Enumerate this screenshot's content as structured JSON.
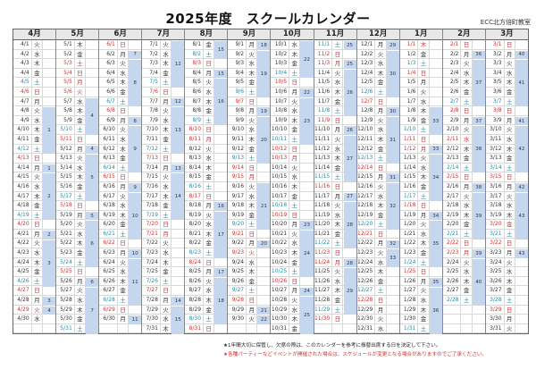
{
  "header": {
    "title": "2025年度　スクールカレンダー",
    "organization": "ECC北方倍町教室"
  },
  "colors": {
    "saturday": "#2a8aa8",
    "holiday": "#d03030",
    "week_shade": "#c5d7ee"
  },
  "weekday_chars": [
    "日",
    "月",
    "火",
    "水",
    "木",
    "金",
    "土"
  ],
  "months": [
    {
      "label": "4月",
      "m": 4,
      "days": 30,
      "first_wd": 2,
      "holidays": [
        29
      ],
      "weeks": [
        [
          8,
          5,
          "1",
          1
        ],
        [
          14,
          1,
          "1",
          1
        ],
        [
          15,
          5,
          "2",
          1
        ],
        [
          21,
          1,
          "2",
          1
        ],
        [
          22,
          5,
          "3",
          1
        ],
        [
          28,
          1,
          "3",
          1
        ],
        [
          29,
          1,
          "4",
          1
        ]
      ]
    },
    {
      "label": "5月",
      "m": 5,
      "days": 31,
      "first_wd": 4,
      "holidays": [
        3,
        4,
        5,
        6
      ],
      "weeks": [
        [
          7,
          4,
          "4",
          1
        ],
        [
          12,
          1,
          "4",
          1
        ],
        [
          13,
          5,
          "5",
          1
        ],
        [
          19,
          1,
          "5",
          1
        ],
        [
          20,
          5,
          "6",
          1
        ],
        [
          26,
          1,
          "6",
          1
        ],
        [
          27,
          5,
          "7",
          1
        ]
      ]
    },
    {
      "label": "6月",
      "m": 6,
      "days": 30,
      "first_wd": 0,
      "holidays": [],
      "weeks": [
        [
          2,
          1,
          "7",
          1
        ],
        [
          3,
          5,
          "8",
          1
        ],
        [
          9,
          1,
          "8",
          1
        ],
        [
          10,
          5,
          "9",
          1
        ],
        [
          16,
          1,
          "9",
          1
        ],
        [
          17,
          5,
          "10",
          1
        ],
        [
          23,
          1,
          "10",
          1
        ],
        [
          24,
          5,
          "11",
          1
        ],
        [
          30,
          1,
          "11",
          1
        ]
      ]
    },
    {
      "label": "7月",
      "m": 7,
      "days": 31,
      "first_wd": 2,
      "holidays": [
        21
      ],
      "weeks": [
        [
          1,
          5,
          "12",
          1
        ],
        [
          7,
          1,
          "12",
          1
        ],
        [
          8,
          5,
          "13",
          1
        ],
        [
          14,
          1,
          "13",
          1
        ],
        [
          15,
          5,
          "14",
          1
        ],
        [
          28,
          1,
          "14",
          1
        ],
        [
          29,
          3,
          "15",
          1
        ]
      ]
    },
    {
      "label": "8月",
      "m": 8,
      "days": 31,
      "first_wd": 5,
      "holidays": [
        11
      ],
      "weeks": [
        [
          1,
          2,
          "15",
          1
        ],
        [
          4,
          1,
          "15",
          1
        ],
        [
          5,
          5,
          "16",
          1
        ],
        [
          18,
          1,
          "16",
          1
        ],
        [
          19,
          5,
          "17",
          1
        ],
        [
          25,
          1,
          "17",
          1
        ],
        [
          26,
          5,
          "18",
          1
        ]
      ]
    },
    {
      "label": "9月",
      "m": 9,
      "days": 30,
      "first_wd": 1,
      "holidays": [
        15,
        23
      ],
      "weeks": [
        [
          1,
          1,
          "18",
          1
        ],
        [
          2,
          5,
          "19",
          1
        ],
        [
          8,
          1,
          "19",
          1
        ],
        [
          9,
          5,
          "20",
          1
        ],
        [
          16,
          5,
          "21",
          1
        ],
        [
          22,
          1,
          "20",
          1
        ],
        [
          29,
          1,
          "21",
          1
        ],
        [
          30,
          1,
          "22",
          1
        ]
      ]
    },
    {
      "label": "10月",
      "m": 10,
      "days": 31,
      "first_wd": 3,
      "holidays": [
        13
      ],
      "weeks": [
        [
          1,
          4,
          "22",
          1
        ],
        [
          6,
          1,
          "22",
          1
        ],
        [
          7,
          5,
          "23",
          1
        ],
        [
          20,
          1,
          "23",
          1
        ],
        [
          21,
          5,
          "24",
          1
        ],
        [
          27,
          1,
          "24",
          1
        ],
        [
          28,
          4,
          "25",
          1
        ]
      ]
    },
    {
      "label": "11月",
      "m": 11,
      "days": 30,
      "first_wd": 6,
      "holidays": [
        3,
        23,
        24
      ],
      "weeks": [
        [
          1,
          1,
          "25",
          1
        ],
        [
          3,
          1,
          "25",
          1
        ],
        [
          4,
          5,
          "26",
          1
        ],
        [
          10,
          1,
          "26",
          1
        ],
        [
          11,
          5,
          "27",
          1
        ],
        [
          17,
          1,
          "27",
          1
        ],
        [
          18,
          5,
          "28",
          1
        ],
        [
          24,
          1,
          "28",
          1
        ],
        [
          25,
          5,
          "29",
          1
        ]
      ]
    },
    {
      "label": "12月",
      "m": 12,
      "days": 31,
      "first_wd": 1,
      "holidays": [],
      "weeks": [
        [
          1,
          1,
          "29",
          1
        ],
        [
          2,
          5,
          "30",
          1
        ],
        [
          8,
          1,
          "30",
          1
        ],
        [
          9,
          5,
          "31",
          1
        ],
        [
          15,
          1,
          "31",
          1
        ],
        [
          16,
          5,
          "32",
          1
        ],
        [
          22,
          1,
          "32",
          1
        ],
        [
          23,
          2,
          "33",
          1
        ]
      ]
    },
    {
      "label": "1月",
      "m": 1,
      "days": 31,
      "first_wd": 4,
      "holidays": [
        1,
        12
      ],
      "weeks": [
        [
          8,
          3,
          "33",
          1
        ],
        [
          12,
          1,
          "33",
          1
        ],
        [
          13,
          5,
          "34",
          1
        ],
        [
          19,
          1,
          "34",
          1
        ],
        [
          20,
          5,
          "35",
          1
        ],
        [
          26,
          1,
          "35",
          1
        ],
        [
          27,
          5,
          "36",
          1
        ]
      ]
    },
    {
      "label": "2月",
      "m": 2,
      "days": 28,
      "first_wd": 0,
      "holidays": [
        11,
        23
      ],
      "weeks": [
        [
          2,
          1,
          "36",
          1
        ],
        [
          3,
          5,
          "37",
          1
        ],
        [
          9,
          1,
          "37",
          1
        ],
        [
          10,
          5,
          "38",
          1
        ],
        [
          16,
          1,
          "38",
          1
        ],
        [
          17,
          5,
          "39",
          1
        ],
        [
          23,
          1,
          "39",
          1
        ],
        [
          24,
          5,
          "40",
          1
        ]
      ]
    },
    {
      "label": "3月",
      "m": 3,
      "days": 31,
      "first_wd": 0,
      "holidays": [
        20
      ],
      "weeks": [
        [
          2,
          1,
          "40",
          1
        ],
        [
          3,
          5,
          "41",
          1
        ],
        [
          9,
          1,
          "41",
          1
        ],
        [
          10,
          5,
          "42",
          1
        ],
        [
          16,
          1,
          "42",
          1
        ],
        [
          17,
          5,
          "43",
          1
        ],
        [
          23,
          1,
          "43",
          1
        ]
      ]
    }
  ],
  "notes": {
    "line1": "★1年間大切に保管し、欠席の際は、このカレンダーを参考に振替出席する日を決定して下さい。",
    "line2": "★各種パーティーなどイベントが開催された場合は、スケジュールが変更となる場合がありますのでご了承ください。"
  }
}
